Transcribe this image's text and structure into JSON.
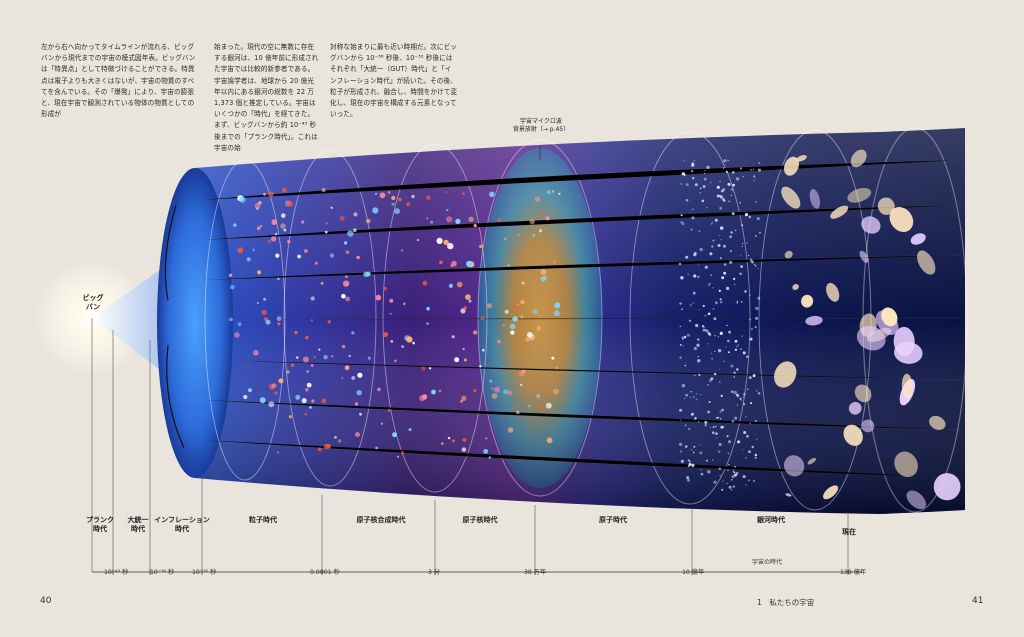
{
  "text": {
    "col1": "左から右へ向かってタイムラインが流れる、ビッグバンから現代までの宇宙の模式図年表。ビッグバンは「特異点」として特徴づけることができる。特異点は電子よりも大きくはないが、宇宙の物質のすべてを含んでいる。その「爆発」により、宇宙の膨張と、現在宇宙で観測されている物体の物質としての形成が",
    "col2": "始まった。現代の空に無数に存在する銀河は、10 億年前に形成された宇宙では比較的新参者である。宇宙論学者は、地球から 20 億光年以内にある銀河の総数を 22 万 1,373 個と推定している。宇宙はいくつかの「時代」を経てきた。まず、ビッグバンから約 10⁻⁴³ 秒後までの「プランク時代」。これは宇宙の始",
    "col3": "対称な始まりに最も近い時期だ。次にビッグバンから 10⁻³⁶ 秒後、10⁻³² 秒後にはそれぞれ「大統一（GUT）時代」と「インフレーション時代」が続いた。その後、粒子が形成され、融合し、時間をかけて変化し、現在の宇宙を構成する元素となっていった。"
  },
  "callout": {
    "line1": "宇宙マイクロ波",
    "line2": "背景放射（→ p.45）"
  },
  "bigbang_label": {
    "line1": "ビッグ",
    "line2": "バン"
  },
  "eras": [
    {
      "line1": "プランク",
      "line2": "時代"
    },
    {
      "line1": "大統一",
      "line2": "時代"
    },
    {
      "line1": "インフレーション",
      "line2": "時代"
    },
    {
      "line1": "粒子時代",
      "line2": ""
    },
    {
      "line1": "原子核合成時代",
      "line2": ""
    },
    {
      "line1": "原子核時代",
      "line2": ""
    },
    {
      "line1": "原子時代",
      "line2": ""
    },
    {
      "line1": "銀河時代",
      "line2": ""
    },
    {
      "line1": "現在",
      "line2": ""
    }
  ],
  "ticks": [
    "10⁻⁴³ 秒",
    "10⁻³⁶ 秒",
    "10⁻³² 秒",
    "0.0001 秒",
    "3 分",
    "38 万年",
    "10 億年",
    "138 億年"
  ],
  "axis_title": "宇宙の時代",
  "page_left": "40",
  "chapter": "1　私たちの宇宙",
  "page_right": "41"
}
